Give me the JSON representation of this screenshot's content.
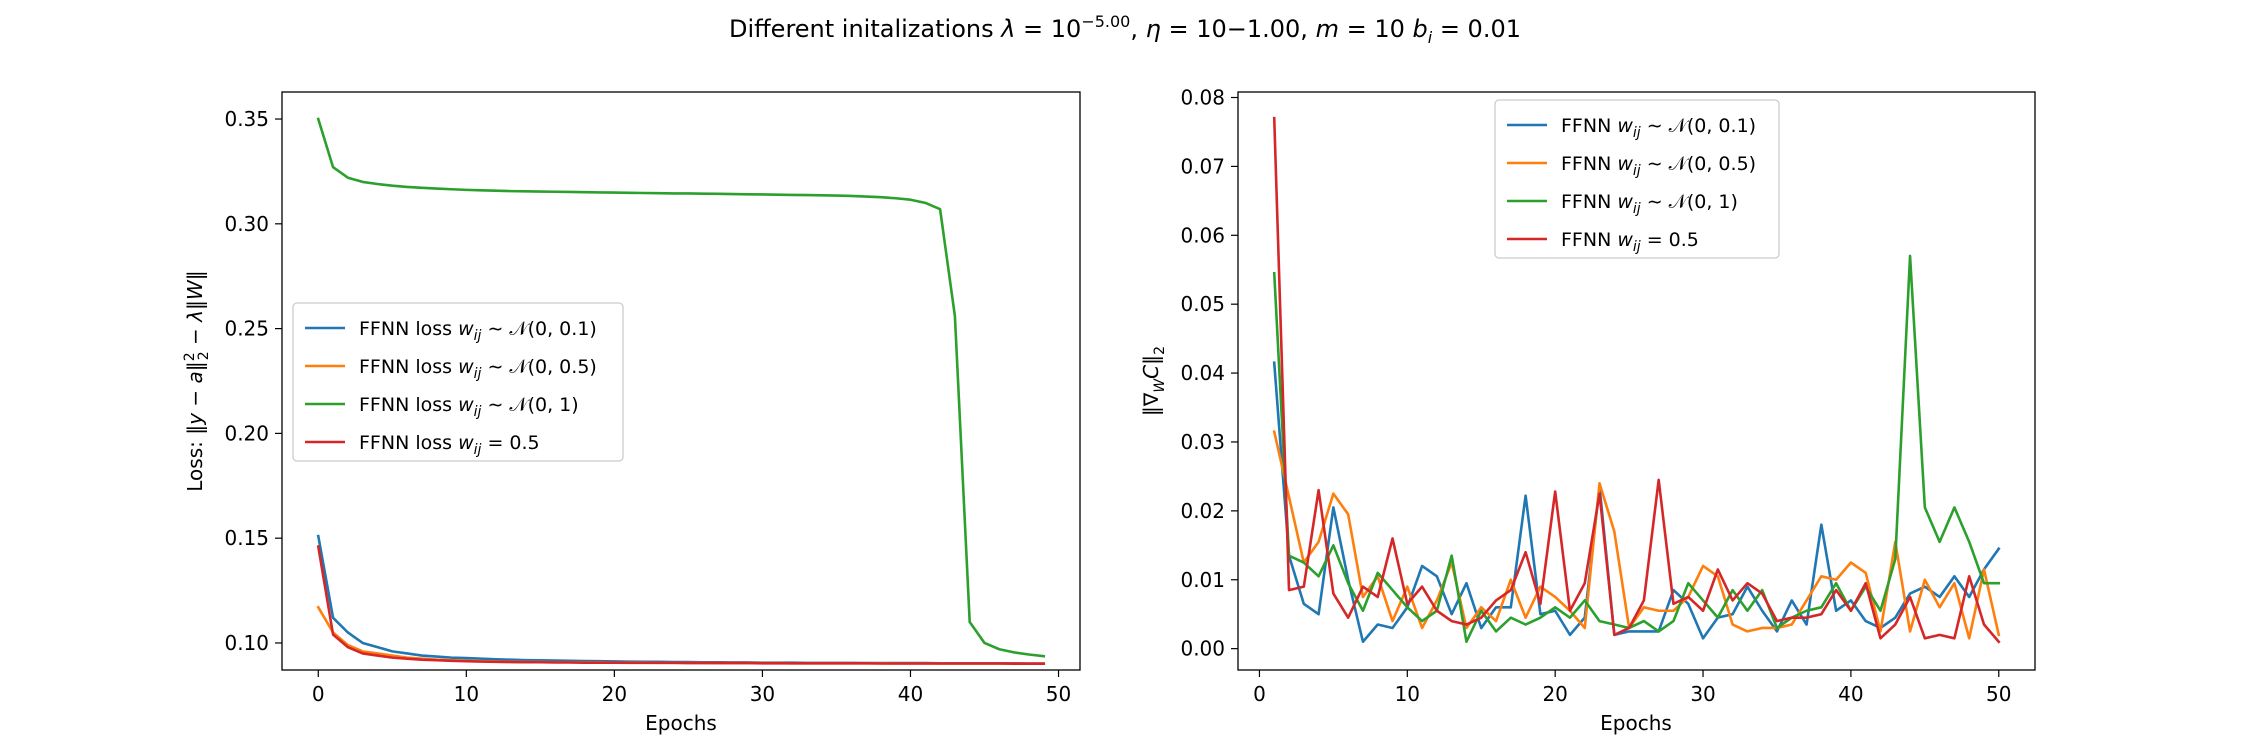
{
  "figure": {
    "title": "Different initalizations λ = 10^{−5.00}, η = 10−1.00, m = 10 b_i = 0.01",
    "colors": [
      "#1f77b4",
      "#ff7f0e",
      "#2ca02c",
      "#d62728"
    ]
  },
  "chart_data": [
    {
      "type": "line",
      "xlabel": "Epochs",
      "ylabel": "Loss: ‖y − a‖²₂ − λ‖W‖",
      "xlim": [
        -2.45,
        51.45
      ],
      "ylim": [
        0.0871,
        0.3629
      ],
      "xticks": [
        0,
        10,
        20,
        30,
        40,
        50
      ],
      "yticks": [
        0.1,
        0.15,
        0.2,
        0.25,
        0.3,
        0.35
      ],
      "ytick_labels": [
        "0.10",
        "0.15",
        "0.20",
        "0.25",
        "0.30",
        "0.35"
      ],
      "grid": false,
      "legend_placement": "center-left",
      "x": [
        0,
        1,
        2,
        3,
        4,
        5,
        6,
        7,
        8,
        9,
        10,
        11,
        12,
        13,
        14,
        15,
        16,
        17,
        18,
        19,
        20,
        21,
        22,
        23,
        24,
        25,
        26,
        27,
        28,
        29,
        30,
        31,
        32,
        33,
        34,
        35,
        36,
        37,
        38,
        39,
        40,
        41,
        42,
        43,
        44,
        45,
        46,
        47,
        48,
        49
      ],
      "series": [
        {
          "name": "FFNN loss w_ij ~ N(0, 0.1)",
          "color": "#1f77b4",
          "values": [
            0.151,
            0.112,
            0.105,
            0.1,
            0.098,
            0.096,
            0.095,
            0.094,
            0.0935,
            0.093,
            0.0928,
            0.0925,
            0.0922,
            0.092,
            0.0918,
            0.0917,
            0.0916,
            0.0915,
            0.0914,
            0.0913,
            0.0912,
            0.0911,
            0.091,
            0.091,
            0.0909,
            0.0909,
            0.0908,
            0.0908,
            0.0907,
            0.0907,
            0.0906,
            0.0906,
            0.0906,
            0.0905,
            0.0905,
            0.0905,
            0.0905,
            0.0904,
            0.0904,
            0.0904,
            0.0904,
            0.0904,
            0.0903,
            0.0903,
            0.0903,
            0.0903,
            0.0903,
            0.0903,
            0.0902,
            0.0902
          ]
        },
        {
          "name": "FFNN loss w_ij ~ N(0, 0.5)",
          "color": "#ff7f0e",
          "values": [
            0.117,
            0.105,
            0.099,
            0.096,
            0.095,
            0.094,
            0.093,
            0.0925,
            0.092,
            0.0918,
            0.0915,
            0.0913,
            0.0912,
            0.091,
            0.0909,
            0.0909,
            0.0908,
            0.0908,
            0.0907,
            0.0907,
            0.0906,
            0.0906,
            0.0906,
            0.0905,
            0.0905,
            0.0905,
            0.0905,
            0.0904,
            0.0904,
            0.0904,
            0.0904,
            0.0904,
            0.0903,
            0.0903,
            0.0903,
            0.0903,
            0.0903,
            0.0903,
            0.0903,
            0.0902,
            0.0902,
            0.0902,
            0.0902,
            0.0902,
            0.0902,
            0.0902,
            0.0902,
            0.0902,
            0.0901,
            0.0901
          ]
        },
        {
          "name": "FFNN loss w_ij ~ N(0, 1)",
          "color": "#2ca02c",
          "values": [
            0.35,
            0.327,
            0.322,
            0.32,
            0.319,
            0.3182,
            0.3176,
            0.3172,
            0.3168,
            0.3165,
            0.3162,
            0.316,
            0.3158,
            0.3156,
            0.3155,
            0.3154,
            0.3153,
            0.3152,
            0.3151,
            0.315,
            0.3149,
            0.3148,
            0.3147,
            0.3146,
            0.3145,
            0.3145,
            0.3144,
            0.3143,
            0.3142,
            0.3141,
            0.314,
            0.3139,
            0.3138,
            0.3137,
            0.3136,
            0.3135,
            0.3133,
            0.313,
            0.3127,
            0.3122,
            0.3115,
            0.31,
            0.307,
            0.256,
            0.11,
            0.1,
            0.097,
            0.0955,
            0.0945,
            0.0937
          ]
        },
        {
          "name": "FFNN loss w_ij = 0.5",
          "color": "#d62728",
          "values": [
            0.146,
            0.104,
            0.098,
            0.095,
            0.094,
            0.093,
            0.0925,
            0.092,
            0.0918,
            0.0915,
            0.0913,
            0.0911,
            0.091,
            0.0909,
            0.0908,
            0.0908,
            0.0907,
            0.0907,
            0.0906,
            0.0906,
            0.0906,
            0.0905,
            0.0905,
            0.0905,
            0.0905,
            0.0904,
            0.0904,
            0.0904,
            0.0904,
            0.0904,
            0.0903,
            0.0903,
            0.0903,
            0.0903,
            0.0903,
            0.0903,
            0.0903,
            0.0903,
            0.0902,
            0.0902,
            0.0902,
            0.0902,
            0.0902,
            0.0902,
            0.0902,
            0.0902,
            0.0902,
            0.0901,
            0.0901,
            0.0901
          ]
        }
      ]
    },
    {
      "type": "line",
      "xlabel": "Epochs",
      "ylabel": "‖∇_W C‖₂",
      "xlim": [
        -1.45,
        52.45
      ],
      "ylim": [
        -0.0031,
        0.0808
      ],
      "xticks": [
        0,
        10,
        20,
        30,
        40,
        50
      ],
      "yticks": [
        0.0,
        0.01,
        0.02,
        0.03,
        0.04,
        0.05,
        0.06,
        0.07,
        0.08
      ],
      "ytick_labels": [
        "0.00",
        "0.01",
        "0.02",
        "0.03",
        "0.04",
        "0.05",
        "0.06",
        "0.07",
        "0.08"
      ],
      "grid": false,
      "legend_placement": "upper-center",
      "x": [
        1,
        2,
        3,
        4,
        5,
        6,
        7,
        8,
        9,
        10,
        11,
        12,
        13,
        14,
        15,
        16,
        17,
        18,
        19,
        20,
        21,
        22,
        23,
        24,
        25,
        26,
        27,
        28,
        29,
        30,
        31,
        32,
        33,
        34,
        35,
        36,
        37,
        38,
        39,
        40,
        41,
        42,
        43,
        44,
        45,
        46,
        47,
        48,
        49,
        50
      ],
      "series": [
        {
          "name": "FFNN w_ij ~ N(0, 0.1)",
          "color": "#1f77b4",
          "values": [
            0.0415,
            0.0135,
            0.0065,
            0.005,
            0.0205,
            0.01,
            0.001,
            0.0035,
            0.003,
            0.006,
            0.012,
            0.0105,
            0.005,
            0.0095,
            0.003,
            0.006,
            0.006,
            0.0222,
            0.005,
            0.0055,
            0.002,
            0.0045,
            0.0235,
            0.002,
            0.0025,
            0.0025,
            0.0025,
            0.0085,
            0.0065,
            0.0015,
            0.0045,
            0.005,
            0.009,
            0.0055,
            0.0025,
            0.007,
            0.0035,
            0.018,
            0.0055,
            0.007,
            0.004,
            0.003,
            0.0045,
            0.008,
            0.009,
            0.0075,
            0.0105,
            0.0075,
            0.0115,
            0.0145
          ]
        },
        {
          "name": "FFNN w_ij ~ N(0, 0.5)",
          "color": "#ff7f0e",
          "values": [
            0.0315,
            0.022,
            0.0125,
            0.0155,
            0.0225,
            0.0195,
            0.0075,
            0.0105,
            0.004,
            0.009,
            0.003,
            0.007,
            0.0125,
            0.003,
            0.006,
            0.004,
            0.01,
            0.0045,
            0.009,
            0.0075,
            0.0055,
            0.003,
            0.024,
            0.017,
            0.003,
            0.006,
            0.0055,
            0.0055,
            0.0075,
            0.012,
            0.0105,
            0.0035,
            0.0025,
            0.003,
            0.003,
            0.0035,
            0.007,
            0.0105,
            0.01,
            0.0125,
            0.011,
            0.0025,
            0.0155,
            0.0025,
            0.01,
            0.006,
            0.0095,
            0.0015,
            0.0115,
            0.002
          ]
        },
        {
          "name": "FFNN w_ij ~ N(0, 1)",
          "color": "#2ca02c",
          "values": [
            0.0545,
            0.0135,
            0.0125,
            0.0105,
            0.015,
            0.0095,
            0.0055,
            0.011,
            0.0085,
            0.006,
            0.004,
            0.0055,
            0.0135,
            0.001,
            0.0055,
            0.0025,
            0.0045,
            0.0035,
            0.0045,
            0.006,
            0.0045,
            0.007,
            0.004,
            0.0035,
            0.003,
            0.004,
            0.0025,
            0.004,
            0.0095,
            0.007,
            0.0045,
            0.0085,
            0.0055,
            0.0085,
            0.003,
            0.0045,
            0.0055,
            0.006,
            0.0095,
            0.0055,
            0.009,
            0.0055,
            0.013,
            0.057,
            0.0205,
            0.0155,
            0.0205,
            0.0155,
            0.0095,
            0.0095
          ]
        },
        {
          "name": "FFNN w_ij = 0.5",
          "color": "#d62728",
          "values": [
            0.077,
            0.0085,
            0.009,
            0.023,
            0.008,
            0.0045,
            0.009,
            0.0075,
            0.016,
            0.0065,
            0.009,
            0.0055,
            0.004,
            0.0035,
            0.0045,
            0.007,
            0.0085,
            0.014,
            0.0065,
            0.0228,
            0.0055,
            0.0095,
            0.0225,
            0.002,
            0.003,
            0.007,
            0.0245,
            0.0065,
            0.0075,
            0.0055,
            0.0115,
            0.007,
            0.0095,
            0.008,
            0.004,
            0.0045,
            0.0045,
            0.005,
            0.0085,
            0.0055,
            0.0095,
            0.0015,
            0.0035,
            0.0075,
            0.0015,
            0.002,
            0.0015,
            0.0105,
            0.0035,
            0.001
          ]
        }
      ]
    }
  ]
}
